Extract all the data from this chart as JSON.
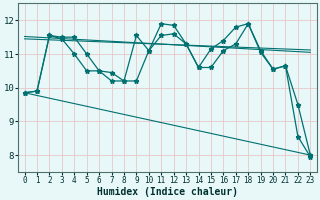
{
  "bg_color": "#c8e8e8",
  "plot_bg": "#e8f8f8",
  "grid_color": "#e8c8c8",
  "line_color": "#007070",
  "xlabel": "Humidex (Indice chaleur)",
  "ylim": [
    7.5,
    12.5
  ],
  "xlim": [
    -0.5,
    23.5
  ],
  "yticks": [
    8,
    9,
    10,
    11,
    12
  ],
  "xticks": [
    0,
    1,
    2,
    3,
    4,
    5,
    6,
    7,
    8,
    9,
    10,
    11,
    12,
    13,
    14,
    15,
    16,
    17,
    18,
    19,
    20,
    21,
    22,
    23
  ],
  "s1x": [
    0,
    1,
    2,
    3,
    4,
    5,
    6,
    7,
    8,
    9,
    10,
    11,
    12,
    13,
    14,
    15,
    16,
    17,
    18,
    19,
    20,
    21,
    22,
    23
  ],
  "s1y": [
    9.85,
    9.9,
    11.55,
    11.45,
    11.0,
    10.5,
    10.5,
    10.45,
    10.2,
    10.2,
    11.1,
    11.55,
    11.6,
    11.3,
    10.6,
    10.6,
    11.1,
    11.3,
    11.9,
    11.05,
    10.55,
    10.65,
    9.5,
    8.0
  ],
  "s2x": [
    0,
    1,
    2,
    3,
    4,
    5,
    6,
    7,
    8,
    9,
    10,
    11,
    12,
    13,
    14,
    15,
    16,
    17,
    18,
    19,
    20,
    21,
    22,
    23
  ],
  "s2y": [
    9.85,
    9.9,
    11.55,
    11.5,
    11.5,
    11.0,
    10.5,
    10.2,
    10.2,
    11.55,
    11.1,
    11.9,
    11.85,
    11.3,
    10.6,
    11.15,
    11.4,
    11.8,
    11.9,
    11.1,
    10.55,
    10.65,
    8.55,
    7.95
  ],
  "reg1x": [
    0,
    23
  ],
  "reg1y": [
    11.52,
    11.05
  ],
  "reg2x": [
    0,
    23
  ],
  "reg2y": [
    11.45,
    11.12
  ],
  "reg3x": [
    0,
    23
  ],
  "reg3y": [
    9.85,
    8.0
  ]
}
